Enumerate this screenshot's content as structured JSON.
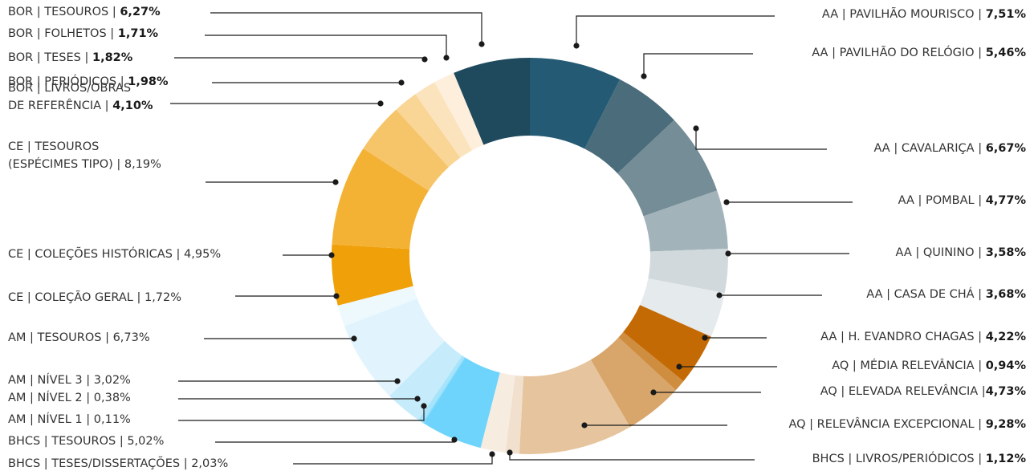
{
  "chart_data": {
    "type": "donut",
    "title": "",
    "slices": [
      {
        "label": "AA | PAVILHÃO MOURISCO | ",
        "value": 7.51,
        "value_text": "7,51%",
        "bold": true,
        "color": "#245a73"
      },
      {
        "label": "AA | PAVILHÃO DO RELÓGIO | ",
        "value": 5.46,
        "value_text": "5,46%",
        "bold": true,
        "color": "#4a6c7b"
      },
      {
        "label": "AA | CAVALARIÇA | ",
        "value": 6.67,
        "value_text": "6,67%",
        "bold": true,
        "color": "#758d96"
      },
      {
        "label": "AA | POMBAL | ",
        "value": 4.77,
        "value_text": "4,77%",
        "bold": true,
        "color": "#a2b4ba"
      },
      {
        "label": "AA | QUININO | ",
        "value": 3.58,
        "value_text": "3,58%",
        "bold": true,
        "color": "#d1d9dc"
      },
      {
        "label": "AA | CASA DE CHÁ | ",
        "value": 3.68,
        "value_text": "3,68%",
        "bold": true,
        "color": "#e5eaec"
      },
      {
        "label": "AA | H. EVANDRO CHAGAS | ",
        "value": 4.22,
        "value_text": "4,22%",
        "bold": true,
        "color": "#c46a05"
      },
      {
        "label": "AQ | MÉDIA RELEVÂNCIA | ",
        "value": 0.94,
        "value_text": "0,94%",
        "bold": true,
        "color": "#cf8d3f"
      },
      {
        "label": "AQ | ELEVADA RELEVÂNCIA |",
        "value": 4.73,
        "value_text": "4,73%",
        "bold": true,
        "color": "#d8a56b"
      },
      {
        "label": "AQ | RELEVÂNCIA EXCEPCIONAL | ",
        "value": 9.28,
        "value_text": "9,28%",
        "bold": true,
        "color": "#e6c49d"
      },
      {
        "label": "BHCS | LIVROS/PERIÓDICOS | ",
        "value": 1.12,
        "value_text": "1,12%",
        "bold": true,
        "color": "#f1e0cd"
      },
      {
        "label": "BHCS | TESES/DISSERTAÇÕES | ",
        "value": 2.03,
        "value_text": "2,03%",
        "bold": false,
        "color": "#f7ece0"
      },
      {
        "label": "BHCS | TESOUROS | ",
        "value": 5.02,
        "value_text": "5,02%",
        "bold": false,
        "color": "#6fd4fb"
      },
      {
        "label": "AM | NÍVEL 1 | ",
        "value": 0.11,
        "value_text": "0,11%",
        "bold": false,
        "color": "#8adcfb"
      },
      {
        "label": "AM | NÍVEL 2 | ",
        "value": 0.38,
        "value_text": "0,38%",
        "bold": false,
        "color": "#a6e4fb"
      },
      {
        "label": "AM | NÍVEL 3 | ",
        "value": 3.02,
        "value_text": "3,02%",
        "bold": false,
        "color": "#c6ecfc"
      },
      {
        "label": "AM | TESOUROS | ",
        "value": 6.73,
        "value_text": "6,73%",
        "bold": false,
        "color": "#e1f4fd"
      },
      {
        "label": "CE | COLEÇÃO GERAL | ",
        "value": 1.72,
        "value_text": "1,72%",
        "bold": false,
        "color": "#eef9fe"
      },
      {
        "label": "CE | COLEÇÕES HISTÓRICAS | ",
        "value": 4.95,
        "value_text": "4,95%",
        "bold": false,
        "color": "#f0a008"
      },
      {
        "label": "CE | TESOUROS\n(ESPÉCIMES TIPO) | ",
        "value": 8.19,
        "value_text": "8,19%",
        "bold": false,
        "color": "#f4b235"
      },
      {
        "label": "BOR | LIVROS/OBRAS\nDE REFERÊNCIA | ",
        "value": 4.1,
        "value_text": "4,10%",
        "bold": true,
        "color": "#f6c469"
      },
      {
        "label": "BOR | PERIÓDICOS | ",
        "value": 1.98,
        "value_text": "1,98%",
        "bold": true,
        "color": "#f9d596"
      },
      {
        "label": "BOR | TESES | ",
        "value": 1.82,
        "value_text": "1,82%",
        "bold": true,
        "color": "#fbe3bd"
      },
      {
        "label": "BOR | FOLHETOS | ",
        "value": 1.71,
        "value_text": "1,71%",
        "bold": true,
        "color": "#fdefdc"
      },
      {
        "label": "BOR | TESOUROS | ",
        "value": 6.27,
        "value_text": "6,27%",
        "bold": true,
        "color": "#1f4a5e"
      }
    ]
  }
}
